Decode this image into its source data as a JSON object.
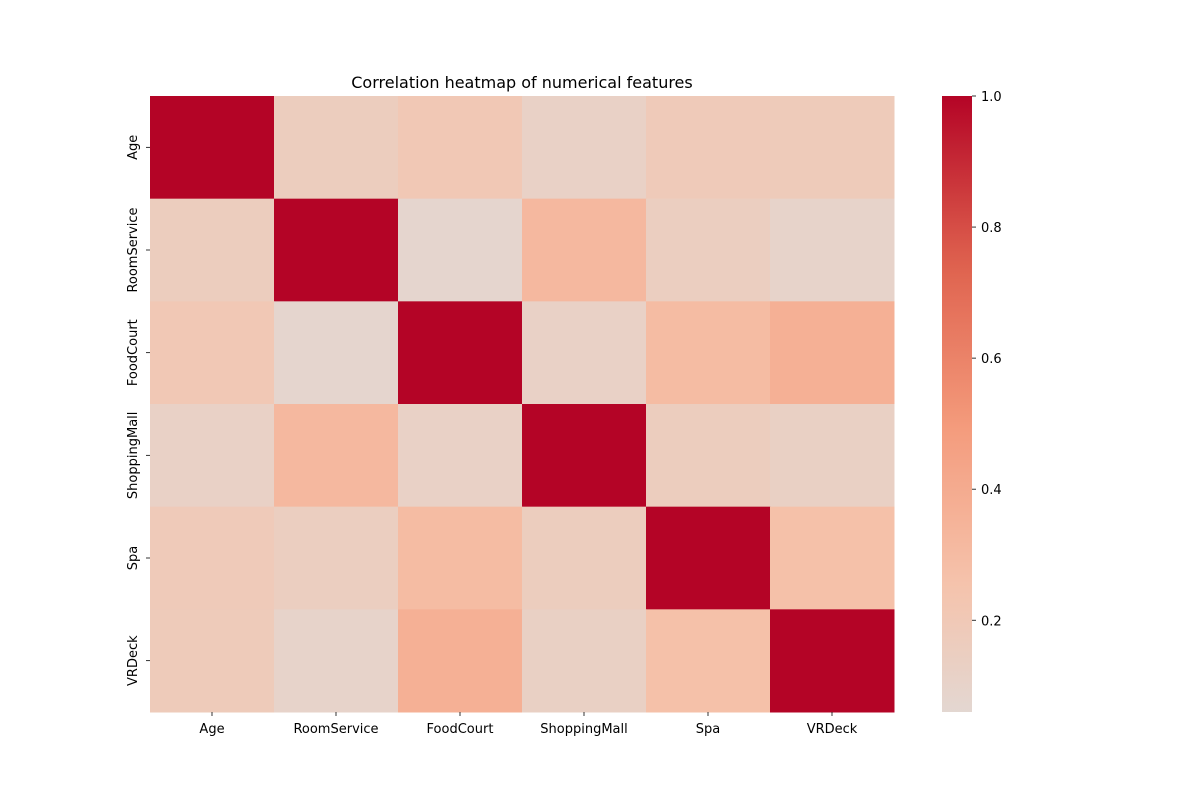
{
  "chart_data": {
    "type": "heatmap",
    "title": "Correlation heatmap of numerical features",
    "xlabel": "",
    "ylabel": "",
    "x_categories": [
      "Age",
      "RoomService",
      "FoodCourt",
      "ShoppingMall",
      "Spa",
      "VRDeck"
    ],
    "y_categories": [
      "Age",
      "RoomService",
      "FoodCourt",
      "ShoppingMall",
      "Spa",
      "VRDeck"
    ],
    "values": [
      [
        1.0,
        0.16,
        0.21,
        0.12,
        0.19,
        0.18
      ],
      [
        0.16,
        1.0,
        0.08,
        0.32,
        0.15,
        0.1
      ],
      [
        0.21,
        0.08,
        1.0,
        0.12,
        0.3,
        0.37
      ],
      [
        0.12,
        0.32,
        0.12,
        1.0,
        0.16,
        0.13
      ],
      [
        0.19,
        0.15,
        0.3,
        0.16,
        1.0,
        0.27
      ],
      [
        0.18,
        0.1,
        0.37,
        0.13,
        0.27,
        1.0
      ]
    ],
    "colormap": "coolwarm",
    "colorbar": {
      "vmin": 0.06,
      "vmax": 1.0,
      "ticks": [
        0.2,
        0.4,
        0.6,
        0.8,
        1.0
      ],
      "tick_labels": [
        "0.2",
        "0.4",
        "0.6",
        "0.8",
        "1.0"
      ]
    },
    "annotations": false,
    "grid": false
  }
}
